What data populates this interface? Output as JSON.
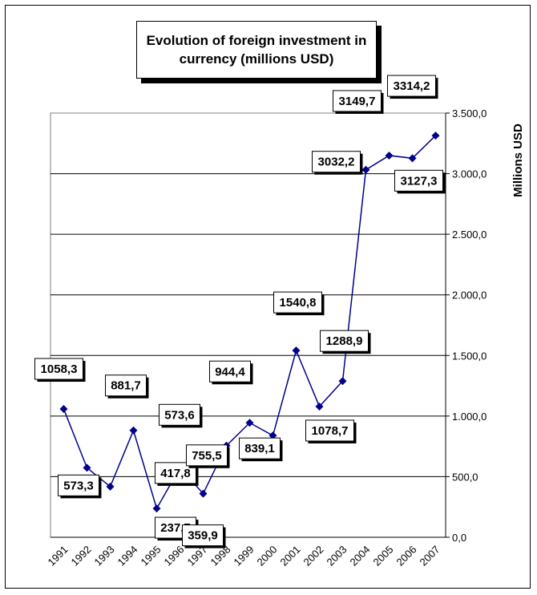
{
  "chart_data": {
    "type": "line",
    "title": "Evolution of foreign investment in currency (millions USD)",
    "ylabel": "Millions USD",
    "xlabel": "",
    "ylim": [
      0,
      3500
    ],
    "y_ticks": [
      "0,0",
      "500,0",
      "1.000,0",
      "1.500,0",
      "2.000,0",
      "2.500,0",
      "3.000,0",
      "3.500,0"
    ],
    "grid": true,
    "categories": [
      "1991",
      "1992",
      "1993",
      "1994",
      "1995",
      "1996",
      "1997",
      "1998",
      "1999",
      "2000",
      "2001",
      "2002",
      "2003",
      "2004",
      "2005",
      "2006",
      "2007"
    ],
    "values": [
      1058.3,
      573.3,
      417.8,
      881.7,
      237.7,
      573.6,
      359.9,
      755.5,
      944.4,
      839.1,
      1540.8,
      1078.7,
      1288.9,
      3032.2,
      3149.7,
      3127.3,
      3314.2
    ],
    "data_labels": [
      "1058,3",
      "573,3",
      "",
      "881,7",
      "237,7",
      "573,6",
      "359,9",
      "755,5",
      "944,4",
      "839,1",
      "1540,8",
      "1078,7",
      "1288,9",
      "3032,2",
      "3149,7",
      "3127,3",
      "3314,2"
    ],
    "label_note_1993": "417,8",
    "colors": {
      "line": "#00008B",
      "marker": "#00008B",
      "grid": "#000000"
    }
  }
}
